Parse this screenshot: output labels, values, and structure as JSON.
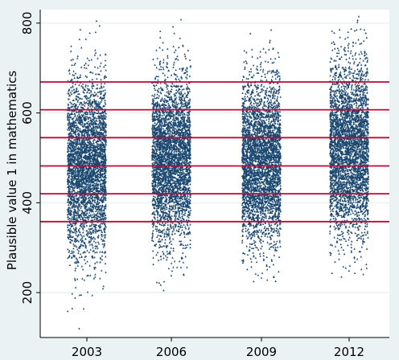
{
  "chart_data": {
    "type": "scatter",
    "title": "",
    "xlabel": "",
    "ylabel": "Plausible value 1 in mathematics",
    "ylim": [
      100,
      830
    ],
    "yticks": [
      200,
      400,
      600,
      800
    ],
    "categories": [
      "2003",
      "2006",
      "2009",
      "2012"
    ],
    "grid": true,
    "series": [
      {
        "category": "2003",
        "center": 480,
        "sd": 95,
        "min": 120,
        "max": 805
      },
      {
        "category": "2006",
        "center": 495,
        "sd": 90,
        "min": 205,
        "max": 808
      },
      {
        "category": "2009",
        "center": 490,
        "sd": 90,
        "min": 225,
        "max": 785
      },
      {
        "category": "2012",
        "center": 520,
        "sd": 95,
        "min": 235,
        "max": 815
      }
    ],
    "reference_lines": [
      358,
      420,
      482,
      545,
      607,
      669
    ],
    "colors": {
      "background": "#eaf2f3",
      "plot_area": "#ffffff",
      "points": "#1a476f",
      "reference_lines": "#c10534",
      "gridlines": "#eaf2f3"
    }
  }
}
